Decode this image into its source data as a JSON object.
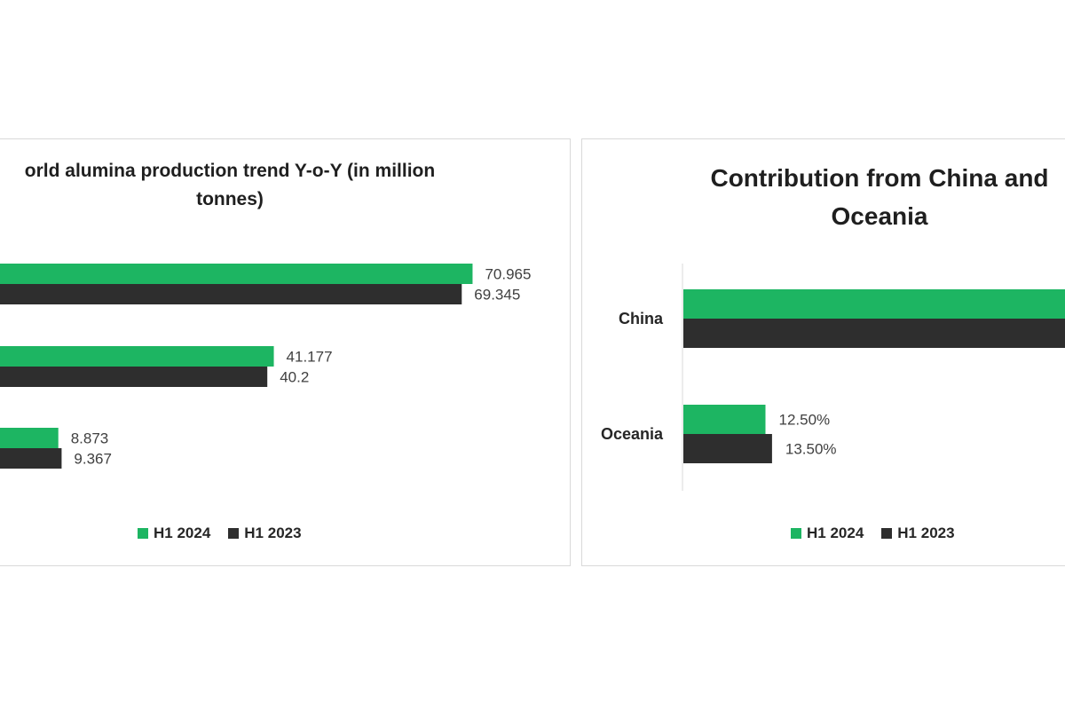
{
  "colors": {
    "h1_2024": "#1db562",
    "h1_2023": "#2e2e2e",
    "label": "#404040",
    "axis": "#d9d9d9"
  },
  "chart_data": [
    {
      "type": "bar",
      "orientation": "horizontal",
      "title_line1": "orld alumina production trend Y-o-Y (in million",
      "title_line2": "tonnes)",
      "categories": [
        "",
        "",
        ""
      ],
      "series": [
        {
          "name": "H1 2024",
          "values": [
            70.965,
            41.177,
            8.873
          ],
          "labels": [
            "70.965",
            "41.177",
            "8.873"
          ]
        },
        {
          "name": "H1 2023",
          "values": [
            69.345,
            40.2,
            9.367
          ],
          "labels": [
            "69.345",
            "40.2",
            "9.367"
          ]
        }
      ],
      "xlim": [
        0,
        72.5
      ],
      "legend": "bottom"
    },
    {
      "type": "bar",
      "orientation": "horizontal",
      "title_line1": "Contribution from China  and",
      "title_line2": "Oceania",
      "categories": [
        "China",
        "Oceania"
      ],
      "series": [
        {
          "name": "H1 2024",
          "values": [
            null,
            12.5
          ],
          "labels": [
            "",
            "12.50%"
          ]
        },
        {
          "name": "H1 2023",
          "values": [
            null,
            13.5
          ],
          "labels": [
            "",
            "13.50%"
          ]
        }
      ],
      "legend": "bottom"
    }
  ]
}
